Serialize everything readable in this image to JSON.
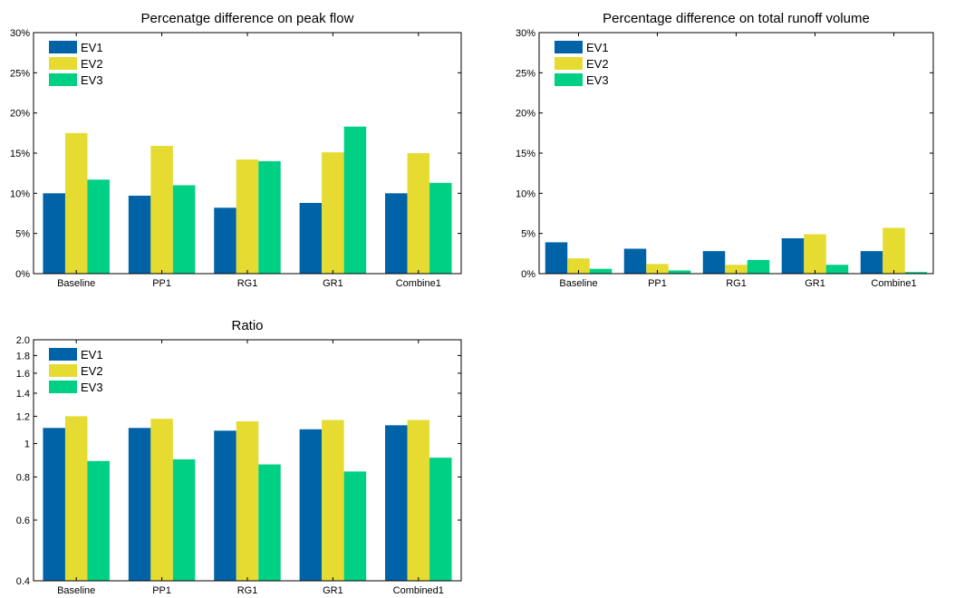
{
  "colors": {
    "EV1": "#0063a8",
    "EV2": "#e6db30",
    "EV3": "#00d084",
    "axis": "#000000"
  },
  "chart_data": [
    {
      "type": "bar",
      "title": "Percenatge difference on peak flow",
      "xlabel": "",
      "ylabel": "",
      "categories": [
        "Baseline",
        "PP1",
        "RG1",
        "GR1",
        "Combine1"
      ],
      "series": [
        {
          "name": "EV1",
          "values": [
            10.0,
            9.7,
            8.2,
            8.8,
            10.0
          ]
        },
        {
          "name": "EV2",
          "values": [
            17.5,
            15.9,
            14.2,
            15.1,
            15.0
          ]
        },
        {
          "name": "EV3",
          "values": [
            11.7,
            11.0,
            14.0,
            18.3,
            11.3
          ]
        }
      ],
      "ylim": [
        0,
        30
      ],
      "yscale": "linear",
      "yticks": [
        0,
        5,
        10,
        15,
        20,
        25,
        30
      ],
      "yticklabels": [
        "0%",
        "5%",
        "10%",
        "15%",
        "20%",
        "25%",
        "30%"
      ],
      "legend": "top-left",
      "grid": false
    },
    {
      "type": "bar",
      "title": "Percentage difference on total runoff volume",
      "xlabel": "",
      "ylabel": "",
      "categories": [
        "Baseline",
        "PP1",
        "RG1",
        "GR1",
        "Combine1"
      ],
      "series": [
        {
          "name": "EV1",
          "values": [
            3.9,
            3.1,
            2.8,
            4.4,
            2.8
          ]
        },
        {
          "name": "EV2",
          "values": [
            1.9,
            1.2,
            1.1,
            4.9,
            5.7
          ]
        },
        {
          "name": "EV3",
          "values": [
            0.6,
            0.4,
            1.7,
            1.1,
            0.2
          ]
        }
      ],
      "ylim": [
        0,
        30
      ],
      "yscale": "linear",
      "yticks": [
        0,
        5,
        10,
        15,
        20,
        25,
        30
      ],
      "yticklabels": [
        "0%",
        "5%",
        "10%",
        "15%",
        "20%",
        "25%",
        "30%"
      ],
      "legend": "top-left",
      "grid": false
    },
    {
      "type": "bar",
      "title": "Ratio",
      "xlabel": "",
      "ylabel": "",
      "categories": [
        "Baseline",
        "PP1",
        "RG1",
        "GR1",
        "Combined1"
      ],
      "series": [
        {
          "name": "EV1",
          "values": [
            1.11,
            1.11,
            1.09,
            1.1,
            1.13
          ]
        },
        {
          "name": "EV2",
          "values": [
            1.2,
            1.18,
            1.16,
            1.17,
            1.17
          ]
        },
        {
          "name": "EV3",
          "values": [
            0.89,
            0.9,
            0.87,
            0.83,
            0.91
          ]
        }
      ],
      "ylim": [
        0.4,
        2.0
      ],
      "yscale": "log",
      "yticks": [
        0.4,
        0.6,
        0.8,
        1,
        1.2,
        1.4,
        1.6,
        1.8,
        2.0
      ],
      "yticklabels": [
        "0.4",
        "0.6",
        "0.8",
        "1",
        "1.2",
        "1.4",
        "1.6",
        "1.8",
        "2.0"
      ],
      "legend": "top-left",
      "grid": false
    }
  ]
}
